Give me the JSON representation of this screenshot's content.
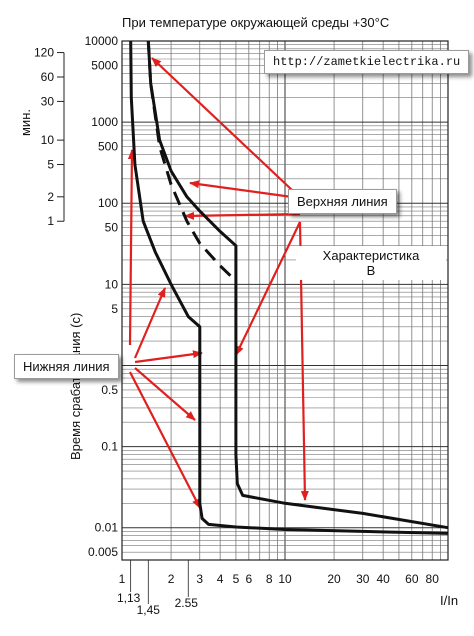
{
  "chart_data": {
    "type": "line",
    "title": "При температуре окружающей среды +30°С",
    "ylabel": "Время срабатывания (с)",
    "xlabel": "I/In",
    "x_scale": "log",
    "y_scale": "log",
    "xlim": [
      1,
      100
    ],
    "ylim": [
      0.004,
      10000
    ],
    "grid": true,
    "x_ticks": [
      {
        "value": 1,
        "label": "1"
      },
      {
        "value": 2,
        "label": "2"
      },
      {
        "value": 3,
        "label": "3"
      },
      {
        "value": 4,
        "label": "4"
      },
      {
        "value": 5,
        "label": "5"
      },
      {
        "value": 6,
        "label": "6"
      },
      {
        "value": 8,
        "label": "8"
      },
      {
        "value": 10,
        "label": "10"
      },
      {
        "value": 20,
        "label": "20"
      },
      {
        "value": 30,
        "label": "30"
      },
      {
        "value": 40,
        "label": "40"
      },
      {
        "value": 60,
        "label": "60"
      },
      {
        "value": 80,
        "label": "80"
      }
    ],
    "x_extra_ticks": [
      {
        "value": 1.13,
        "label": "1,13"
      },
      {
        "value": 1.45,
        "label": "1,45"
      },
      {
        "value": 2.55,
        "label": "2.55"
      }
    ],
    "y_ticks": [
      {
        "value": 10000,
        "label": "10000"
      },
      {
        "value": 5000,
        "label": "5000"
      },
      {
        "value": 1000,
        "label": "1000"
      },
      {
        "value": 500,
        "label": "500"
      },
      {
        "value": 100,
        "label": "100"
      },
      {
        "value": 50,
        "label": "50"
      },
      {
        "value": 10,
        "label": "10"
      },
      {
        "value": 5,
        "label": "5"
      },
      {
        "value": 1,
        "label": "1"
      },
      {
        "value": 0.5,
        "label": "0.5"
      },
      {
        "value": 0.1,
        "label": "0.1"
      },
      {
        "value": 0.01,
        "label": "0.01"
      },
      {
        "value": 0.005,
        "label": "0.005"
      }
    ],
    "minutes_axis": {
      "label": "мин.",
      "ticks": [
        {
          "value": 120,
          "label": "120"
        },
        {
          "value": 60,
          "label": "60"
        },
        {
          "value": 30,
          "label": "30"
        },
        {
          "value": 10,
          "label": "10"
        },
        {
          "value": 5,
          "label": "5"
        },
        {
          "value": 2,
          "label": "2"
        },
        {
          "value": 1,
          "label": "1"
        }
      ]
    },
    "series": [
      {
        "style": "solid",
        "points": [
          [
            1.13,
            10000
          ],
          [
            1.14,
            2000
          ],
          [
            1.2,
            300
          ],
          [
            1.35,
            60
          ],
          [
            1.6,
            25
          ],
          [
            2,
            10
          ],
          [
            2.55,
            4
          ],
          [
            3,
            3
          ],
          [
            3,
            0.02
          ],
          [
            3.1,
            0.013
          ],
          [
            3.4,
            0.011
          ],
          [
            5,
            0.0102
          ],
          [
            10,
            0.0095
          ],
          [
            30,
            0.009
          ],
          [
            100,
            0.0085
          ]
        ]
      },
      {
        "style": "solid",
        "points": [
          [
            1.45,
            10000
          ],
          [
            1.5,
            3000
          ],
          [
            1.7,
            600
          ],
          [
            2,
            250
          ],
          [
            2.5,
            120
          ],
          [
            3,
            80
          ],
          [
            4,
            45
          ],
          [
            5,
            30
          ],
          [
            5,
            0.08
          ],
          [
            5.1,
            0.035
          ],
          [
            5.5,
            0.025
          ],
          [
            10,
            0.02
          ],
          [
            30,
            0.015
          ],
          [
            100,
            0.01
          ]
        ]
      },
      {
        "style": "dashed",
        "points": [
          [
            1.45,
            10000
          ],
          [
            1.5,
            3000
          ],
          [
            1.7,
            500
          ],
          [
            2,
            170
          ],
          [
            2.5,
            60
          ],
          [
            3,
            32
          ],
          [
            4,
            17
          ],
          [
            5,
            11
          ]
        ]
      }
    ],
    "annotations": {
      "url": "http://zametkielectrika.ru",
      "upper_line": "Верхняя линия",
      "lower_line": "Нижняя линия",
      "characteristic_line1": "Характеристика",
      "characteristic_line2": "В"
    }
  }
}
